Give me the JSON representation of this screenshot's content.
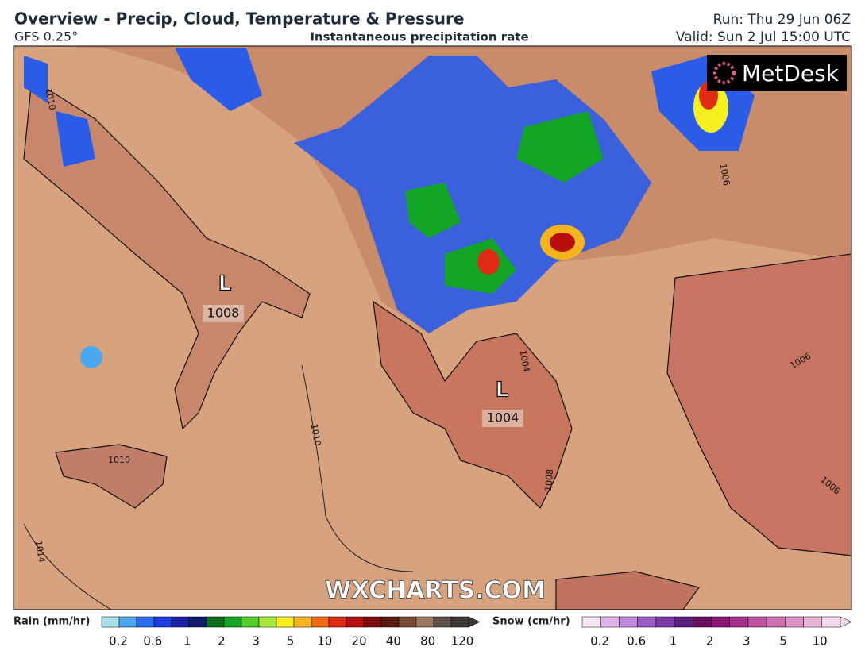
{
  "header": {
    "title": "Overview - Precip, Cloud, Temperature & Pressure",
    "model": "GFS 0.25°",
    "subtitle": "Instantaneous precipitation rate",
    "run": "Run: Thu 29 Jun 06Z",
    "valid": "Valid: Sun 2 Jul 15:00 UTC"
  },
  "logo": "MetDesk",
  "watermark": "WXCHARTS.COM",
  "map": {
    "lows": [
      {
        "symbol": "L",
        "pressure": "1008"
      },
      {
        "symbol": "L",
        "pressure": "1004"
      }
    ],
    "isobar_labels": [
      "1010",
      "1010",
      "1010",
      "1014",
      "1006",
      "1006",
      "1008",
      "1006",
      "1004"
    ]
  },
  "legend": {
    "rain": {
      "label": "Rain (mm/hr)",
      "ticks": [
        0.2,
        0.6,
        1,
        2,
        3,
        5,
        10,
        20,
        40,
        80,
        120
      ],
      "colors": [
        "#a8e0ea",
        "#4aa8f0",
        "#2a6cf0",
        "#1e3ce0",
        "#1a1fa8",
        "#121a6e",
        "#0a6e1a",
        "#13a626",
        "#4fd12a",
        "#a6e83a",
        "#f5f01e",
        "#f5b41e",
        "#f06a14",
        "#e02a14",
        "#b80e0e",
        "#7a0a0a",
        "#5a1a10",
        "#7a4a34",
        "#9a7862",
        "#5e504a",
        "#3c3634"
      ]
    },
    "snow": {
      "label": "Snow (cm/hr)",
      "ticks": [
        0.2,
        0.6,
        1,
        2,
        3,
        5,
        10
      ],
      "colors": [
        "#f5e6f5",
        "#dcb4e8",
        "#c088dc",
        "#9c5cc8",
        "#7a3aa8",
        "#5a2080",
        "#6a1060",
        "#8a1478",
        "#a8308c",
        "#c050a0",
        "#d070b0",
        "#dc90c4",
        "#e8b4d8",
        "#f4d8ec"
      ]
    }
  }
}
